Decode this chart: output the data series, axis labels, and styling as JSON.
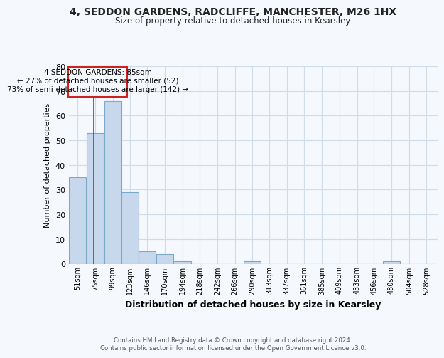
{
  "title_line1": "4, SEDDON GARDENS, RADCLIFFE, MANCHESTER, M26 1HX",
  "title_line2": "Size of property relative to detached houses in Kearsley",
  "xlabel": "Distribution of detached houses by size in Kearsley",
  "ylabel": "Number of detached properties",
  "footer_line1": "Contains HM Land Registry data © Crown copyright and database right 2024.",
  "footer_line2": "Contains public sector information licensed under the Open Government Licence v3.0.",
  "bin_labels": [
    "51sqm",
    "75sqm",
    "99sqm",
    "123sqm",
    "146sqm",
    "170sqm",
    "194sqm",
    "218sqm",
    "242sqm",
    "266sqm",
    "290sqm",
    "313sqm",
    "337sqm",
    "361sqm",
    "385sqm",
    "409sqm",
    "433sqm",
    "456sqm",
    "480sqm",
    "504sqm",
    "528sqm"
  ],
  "bin_starts": [
    51,
    75,
    99,
    123,
    146,
    170,
    194,
    218,
    242,
    266,
    290,
    313,
    337,
    361,
    385,
    409,
    433,
    456,
    480,
    504,
    528
  ],
  "bin_width": 24,
  "values": [
    35,
    53,
    66,
    29,
    5,
    4,
    1,
    0,
    0,
    0,
    1,
    0,
    0,
    0,
    0,
    0,
    0,
    0,
    1,
    0,
    0
  ],
  "bar_color": "#c8d8ec",
  "bar_edge_color": "#7aa8c8",
  "grid_color": "#d0dde8",
  "property_size": 85,
  "red_line_color": "#cc2222",
  "annotation_box_edgecolor": "#cc2222",
  "annotation_text_line1": "4 SEDDON GARDENS: 85sqm",
  "annotation_text_line2": "← 27% of detached houses are smaller (52)",
  "annotation_text_line3": "73% of semi-detached houses are larger (142) →",
  "ylim": [
    0,
    80
  ],
  "yticks": [
    0,
    10,
    20,
    30,
    40,
    50,
    60,
    70,
    80
  ],
  "background_color": "#f5f8fc"
}
